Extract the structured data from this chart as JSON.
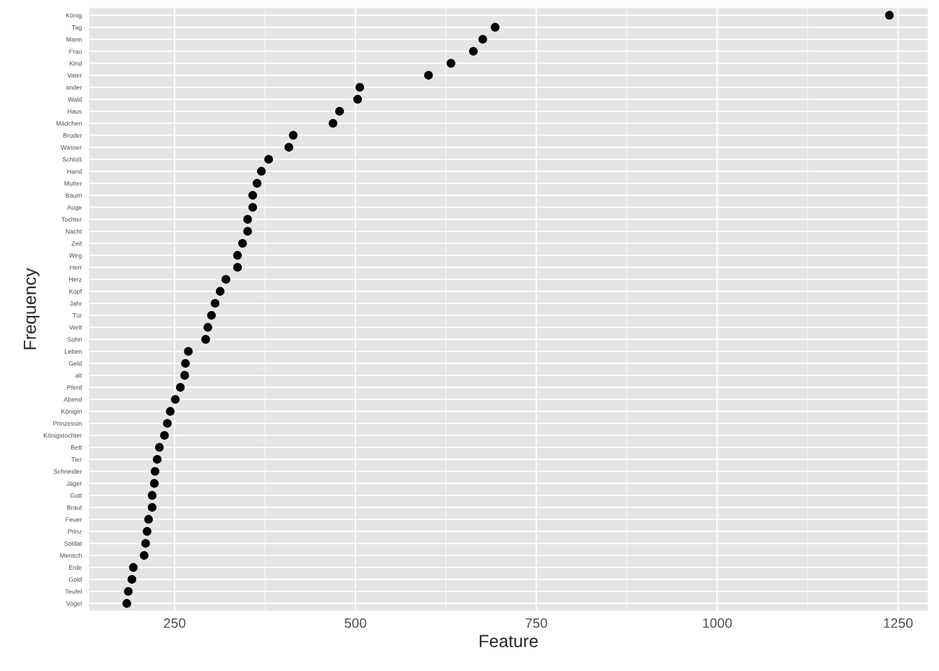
{
  "chart_data": {
    "type": "scatter",
    "orientation": "horizontal",
    "xlabel": "Feature",
    "ylabel": "Frequency",
    "categories": [
      "König",
      "Tag",
      "Mann",
      "Frau",
      "Kind",
      "Vater",
      "ander",
      "Wald",
      "Haus",
      "Mädchen",
      "Bruder",
      "Wasser",
      "Schloß",
      "Hand",
      "Mutter",
      "Baum",
      "Auge",
      "Tochter",
      "Nacht",
      "Zeit",
      "Weg",
      "Herr",
      "Herz",
      "Kopf",
      "Jahr",
      "Tür",
      "Welt",
      "Sohn",
      "Leben",
      "Geld",
      "alt",
      "Pferd",
      "Abend",
      "Königin",
      "Prinzessin",
      "Königstochter",
      "Bett",
      "Tier",
      "Schneider",
      "Jäger",
      "Gott",
      "Braut",
      "Feuer",
      "Prinz",
      "Soldat",
      "Mensch",
      "Erde",
      "Gold",
      "Teufel",
      "Vogel"
    ],
    "values": [
      1238,
      693,
      676,
      663,
      632,
      601,
      506,
      503,
      478,
      469,
      414,
      408,
      380,
      370,
      364,
      358,
      358,
      351,
      351,
      344,
      337,
      337,
      321,
      313,
      306,
      301,
      296,
      293,
      269,
      265,
      264,
      258,
      251,
      244,
      240,
      236,
      229,
      226,
      223,
      222,
      219,
      219,
      214,
      212,
      210,
      208,
      193,
      191,
      186,
      184
    ],
    "color": "#000000",
    "marker": "circle",
    "xlim": [
      132,
      1291
    ],
    "xticks": [
      250,
      500,
      750,
      1000,
      1250
    ],
    "grid": true
  }
}
